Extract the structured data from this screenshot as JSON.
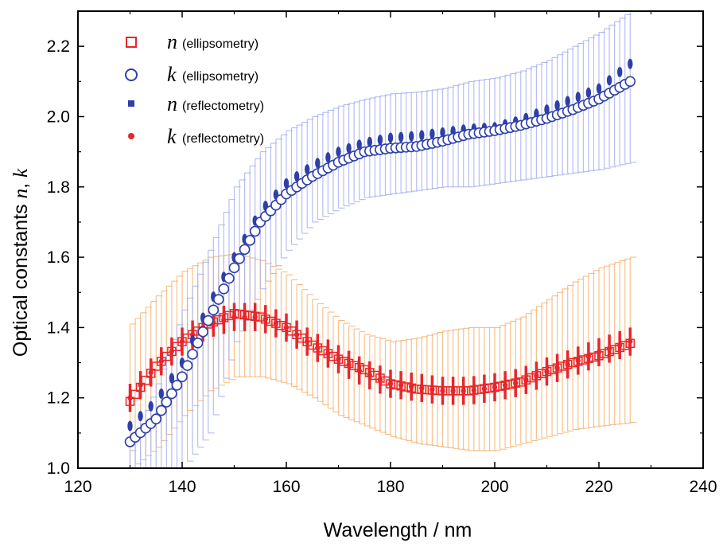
{
  "chart_data": {
    "type": "scatter",
    "xlabel": "Wavelength / nm",
    "ylabel_parts": [
      "Optical constants ",
      "n",
      ", ",
      "k"
    ],
    "xlim": [
      120,
      240
    ],
    "ylim": [
      1.0,
      2.3
    ],
    "xticks": [
      120,
      140,
      160,
      180,
      200,
      220,
      240
    ],
    "yticks": [
      1.0,
      1.2,
      1.4,
      1.6,
      1.8,
      2.0,
      2.2
    ],
    "xtick_labels": [
      "120",
      "140",
      "160",
      "180",
      "200",
      "220",
      "240"
    ],
    "ytick_labels": [
      "1.0",
      "1.2",
      "1.4",
      "1.6",
      "1.8",
      "2.0",
      "2.2"
    ],
    "x_range": [
      130,
      226
    ],
    "x_step": 1,
    "colors": {
      "n_ellipsometry": "#e8262a",
      "k_ellipsometry": "#2e3fa8",
      "n_reflectometry": "#2e3fa8",
      "k_reflectometry": "#e8262a",
      "k_error_band": "#aab4ef",
      "n_error_band": "#f6b77a"
    },
    "legend": {
      "position": "top-left",
      "entries": [
        {
          "symbol": "n",
          "text": "(ellipsometry)",
          "marker": "open-square"
        },
        {
          "symbol": "k",
          "text": "(ellipsometry)",
          "marker": "open-circle"
        },
        {
          "symbol": "n",
          "text": "(reflectometry)",
          "marker": "filled-square"
        },
        {
          "symbol": "k",
          "text": "(reflectometry)",
          "marker": "filled-circle"
        }
      ]
    },
    "series": [
      {
        "name": "n (ellipsometry)",
        "key": "n_ell",
        "x": [
          130,
          135,
          140,
          145,
          150,
          155,
          160,
          165,
          170,
          175,
          180,
          185,
          190,
          195,
          200,
          205,
          210,
          215,
          220,
          226
        ],
        "y": [
          1.19,
          1.29,
          1.36,
          1.41,
          1.44,
          1.43,
          1.4,
          1.35,
          1.31,
          1.28,
          1.24,
          1.225,
          1.22,
          1.22,
          1.23,
          1.245,
          1.275,
          1.3,
          1.32,
          1.355
        ]
      },
      {
        "name": "k (ellipsometry)",
        "key": "k_ell",
        "x": [
          130,
          135,
          140,
          145,
          150,
          155,
          160,
          165,
          170,
          175,
          180,
          185,
          190,
          195,
          200,
          205,
          210,
          215,
          220,
          226
        ],
        "y": [
          1.075,
          1.14,
          1.26,
          1.42,
          1.57,
          1.7,
          1.78,
          1.83,
          1.87,
          1.9,
          1.91,
          1.915,
          1.93,
          1.95,
          1.96,
          1.975,
          1.995,
          2.02,
          2.05,
          2.1
        ]
      },
      {
        "name": "n (reflectometry)",
        "key": "n_ref",
        "x": [
          130,
          135,
          140,
          145,
          150,
          155,
          160,
          165,
          170,
          175,
          180,
          185,
          190,
          195,
          200,
          205,
          210,
          215,
          220,
          226
        ],
        "y": [
          1.12,
          1.19,
          1.3,
          1.46,
          1.6,
          1.73,
          1.81,
          1.86,
          1.9,
          1.925,
          1.94,
          1.945,
          1.955,
          1.965,
          1.97,
          1.99,
          2.02,
          2.05,
          2.08,
          2.15
        ]
      },
      {
        "name": "k (reflectometry)",
        "key": "k_ref",
        "x": [
          130,
          135,
          140,
          145,
          150,
          155,
          160,
          165,
          170,
          175,
          180,
          185,
          190,
          195,
          200,
          205,
          210,
          215,
          220,
          226
        ],
        "y": [
          1.2,
          1.29,
          1.36,
          1.41,
          1.43,
          1.43,
          1.4,
          1.35,
          1.31,
          1.27,
          1.24,
          1.23,
          1.22,
          1.22,
          1.23,
          1.245,
          1.275,
          1.3,
          1.33,
          1.36
        ],
        "err": 0.04
      },
      {
        "name": "k error",
        "key": "k_err",
        "x": [
          130,
          135,
          140,
          145,
          150,
          155,
          160,
          165,
          170,
          175,
          180,
          185,
          190,
          195,
          200,
          205,
          210,
          215,
          220,
          226
        ],
        "upper": [
          1.05,
          1.24,
          1.45,
          1.62,
          1.8,
          1.9,
          1.96,
          2.0,
          2.03,
          2.05,
          2.065,
          2.07,
          2.08,
          2.1,
          2.11,
          2.13,
          2.16,
          2.2,
          2.24,
          2.3
        ],
        "lower": [
          1.0,
          1.0,
          1.0,
          1.1,
          1.36,
          1.51,
          1.62,
          1.7,
          1.74,
          1.77,
          1.78,
          1.79,
          1.8,
          1.8,
          1.81,
          1.82,
          1.83,
          1.84,
          1.85,
          1.87
        ]
      },
      {
        "name": "n error",
        "key": "n_err",
        "x": [
          130,
          135,
          140,
          145,
          150,
          155,
          160,
          165,
          170,
          175,
          180,
          185,
          190,
          195,
          200,
          205,
          210,
          215,
          220,
          226
        ],
        "upper": [
          1.41,
          1.49,
          1.56,
          1.6,
          1.61,
          1.59,
          1.55,
          1.48,
          1.42,
          1.38,
          1.36,
          1.37,
          1.39,
          1.4,
          1.4,
          1.43,
          1.48,
          1.53,
          1.57,
          1.6
        ],
        "lower": [
          1.0,
          1.06,
          1.15,
          1.22,
          1.26,
          1.26,
          1.24,
          1.2,
          1.15,
          1.12,
          1.09,
          1.07,
          1.06,
          1.05,
          1.05,
          1.07,
          1.09,
          1.11,
          1.12,
          1.13
        ]
      }
    ]
  }
}
